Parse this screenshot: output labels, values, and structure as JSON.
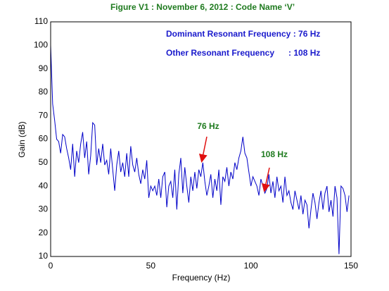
{
  "chart_data": {
    "type": "line",
    "title": "Figure V1 : November 6, 2012 : Code Name ‘V’",
    "x_label": "Frequency (Hz)",
    "y_label": "Gain (dB)",
    "notes": [
      "Dominant Resonant Frequency : 76 Hz",
      "Other Resonant Frequency      : 108 Hz"
    ],
    "annotations": [
      "76 Hz",
      "108 Hz"
    ],
    "x": [
      0,
      1,
      2,
      3,
      4,
      5,
      6,
      7,
      8,
      9,
      10,
      11,
      12,
      13,
      14,
      15,
      16,
      17,
      18,
      19,
      20,
      21,
      22,
      23,
      24,
      25,
      26,
      27,
      28,
      29,
      30,
      31,
      32,
      33,
      34,
      35,
      36,
      37,
      38,
      39,
      40,
      41,
      42,
      43,
      44,
      45,
      46,
      47,
      48,
      49,
      50,
      51,
      52,
      53,
      54,
      55,
      56,
      57,
      58,
      59,
      60,
      61,
      62,
      63,
      64,
      65,
      66,
      67,
      68,
      69,
      70,
      71,
      72,
      73,
      74,
      75,
      76,
      77,
      78,
      79,
      80,
      81,
      82,
      83,
      84,
      85,
      86,
      87,
      88,
      89,
      90,
      91,
      92,
      93,
      94,
      95,
      96,
      97,
      98,
      99,
      100,
      101,
      102,
      103,
      104,
      105,
      106,
      107,
      108,
      109,
      110,
      111,
      112,
      113,
      114,
      115,
      116,
      117,
      118,
      119,
      120,
      121,
      122,
      123,
      124,
      125,
      126,
      127,
      128,
      129,
      130,
      131,
      132,
      133,
      134,
      135,
      136,
      137,
      138,
      139,
      140,
      141,
      142,
      143,
      144,
      145,
      146,
      147,
      148,
      149
    ],
    "series": [
      {
        "name": "Gain",
        "color": "#0000c8",
        "values": [
          100,
          75,
          68,
          60,
          59,
          54,
          62,
          61,
          56,
          52,
          47,
          58,
          44,
          55,
          50,
          58,
          63,
          52,
          59,
          45,
          53,
          67,
          66,
          49,
          56,
          50,
          58,
          49,
          51,
          45,
          56,
          47,
          38,
          49,
          55,
          46,
          50,
          44,
          54,
          44,
          57,
          49,
          46,
          52,
          45,
          41,
          47,
          43,
          51,
          35,
          40,
          38,
          40,
          36,
          43,
          35,
          44,
          46,
          31,
          40,
          42,
          35,
          47,
          30,
          45,
          52,
          37,
          48,
          40,
          33,
          44,
          38,
          46,
          39,
          47,
          44,
          50,
          42,
          36,
          40,
          45,
          35,
          43,
          38,
          47,
          32,
          44,
          42,
          48,
          40,
          46,
          43,
          50,
          47,
          52,
          55,
          61,
          54,
          52,
          46,
          40,
          44,
          42,
          40,
          36,
          43,
          40,
          37,
          39,
          45,
          37,
          42,
          35,
          44,
          38,
          40,
          33,
          44,
          36,
          38,
          33,
          30,
          38,
          34,
          30,
          36,
          28,
          34,
          32,
          22,
          30,
          37,
          33,
          26,
          33,
          38,
          30,
          37,
          40,
          29,
          34,
          27,
          40,
          35,
          11,
          40,
          39,
          36,
          29,
          36
        ]
      }
    ],
    "xlim": [
      0,
      150
    ],
    "ylim": [
      10,
      110
    ],
    "xticks": [
      0,
      50,
      100,
      150
    ],
    "yticks": [
      10,
      20,
      30,
      40,
      50,
      60,
      70,
      80,
      90,
      100,
      110
    ],
    "grid": true
  }
}
